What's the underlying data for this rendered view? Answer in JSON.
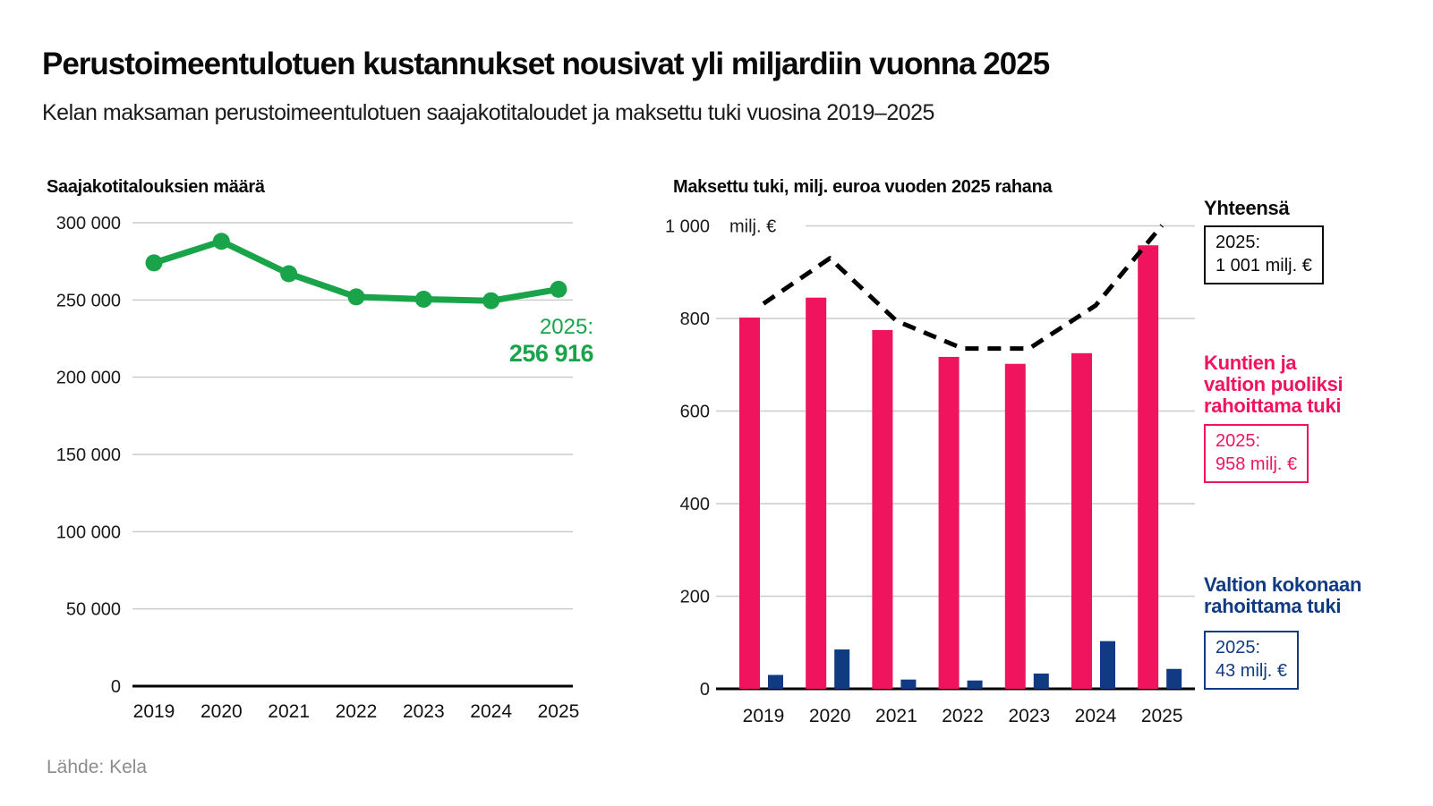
{
  "header": {
    "title": "Perustoimeentulotuen kustannukset nousivat yli miljardiin vuonna 2025",
    "subtitle": "Kelan maksaman perustoimeentulotuen saajakotitaloudet ja maksettu tuki vuosina 2019–2025"
  },
  "footer": {
    "source": "Lähde: Kela"
  },
  "colors": {
    "green": "#1aa44a",
    "pink": "#f0145e",
    "blue": "#103b82",
    "grid": "#cccccc",
    "axis": "#000000",
    "total_line": "#000000",
    "tick_text": "#1a1a1a"
  },
  "chart_data": [
    {
      "type": "line",
      "title": "Saajakotitalouksien määrä",
      "categories": [
        "2019",
        "2020",
        "2021",
        "2022",
        "2023",
        "2024",
        "2025"
      ],
      "series": [
        {
          "name": "Saajakotitaloudet",
          "color_key": "green",
          "values": [
            274000,
            288000,
            267000,
            252000,
            250500,
            249500,
            256916
          ]
        }
      ],
      "ylim": [
        0,
        300000
      ],
      "yticks": [
        {
          "value": 300000,
          "label": "300 000"
        },
        {
          "value": 250000,
          "label": "250 000"
        },
        {
          "value": 200000,
          "label": "200 000"
        },
        {
          "value": 150000,
          "label": "150 000"
        },
        {
          "value": 100000,
          "label": "100 000"
        },
        {
          "value": 50000,
          "label": "50 000"
        },
        {
          "value": 0,
          "label": "0"
        }
      ],
      "grid": true,
      "legend_position": "none",
      "annotation": {
        "line1": "2025:",
        "line2": "256 916"
      }
    },
    {
      "type": "bar",
      "title": "Maksettu tuki, milj. euroa vuoden 2025 rahana",
      "categories": [
        "2019",
        "2020",
        "2021",
        "2022",
        "2023",
        "2024",
        "2025"
      ],
      "series": [
        {
          "name": "Kuntien ja valtion puoliksi rahoittama tuki",
          "render": "bar",
          "color_key": "pink",
          "values": [
            802,
            845,
            775,
            717,
            702,
            725,
            958
          ]
        },
        {
          "name": "Valtion kokonaan rahoittama tuki",
          "render": "bar",
          "color_key": "blue",
          "values": [
            30,
            85,
            20,
            18,
            33,
            103,
            43
          ]
        },
        {
          "name": "Yhteensä",
          "render": "dashed-line",
          "color_key": "total_line",
          "values": [
            832,
            930,
            795,
            735,
            735,
            828,
            1001
          ]
        }
      ],
      "ylim": [
        0,
        1000
      ],
      "yticks": [
        {
          "value": 1000,
          "label": "1 000"
        },
        {
          "value": 800,
          "label": "800"
        },
        {
          "value": 600,
          "label": "600"
        },
        {
          "value": 400,
          "label": "400"
        },
        {
          "value": 200,
          "label": "200"
        },
        {
          "value": 0,
          "label": "0"
        }
      ],
      "y_axis_unit": "milj. €",
      "grid": true,
      "legend_position": "right"
    }
  ],
  "legend": {
    "total": {
      "heading": "Yhteensä",
      "box_line1": "2025:",
      "box_line2": "1 001 milj. €"
    },
    "pink": {
      "heading_lines": [
        "Kuntien ja",
        "valtion puoliksi",
        "rahoittama tuki"
      ],
      "box_line1": "2025:",
      "box_line2": "958 milj. €"
    },
    "blue": {
      "heading_lines": [
        "Valtion kokonaan",
        "rahoittama tuki"
      ],
      "box_line1": "2025:",
      "box_line2": "43 milj. €"
    }
  }
}
